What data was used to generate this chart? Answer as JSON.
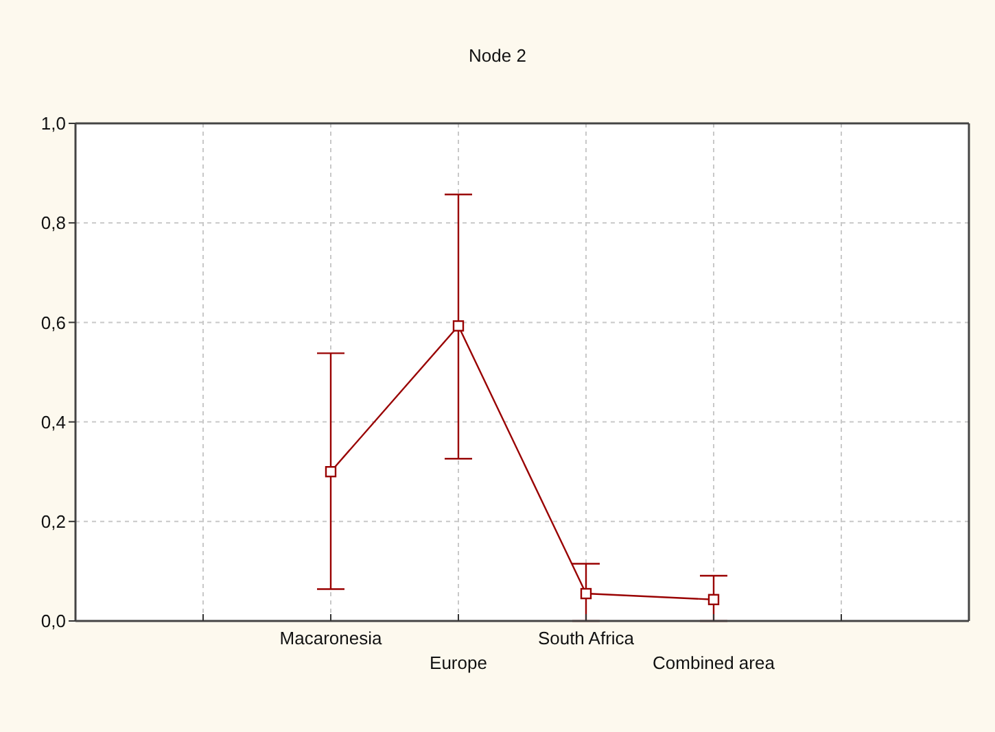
{
  "chart_data": {
    "type": "line",
    "title": "Node 2",
    "categories": [
      null,
      "Macaronesia",
      "Europe",
      "South Africa",
      "Combined area",
      null
    ],
    "series": [
      {
        "color": "#990000",
        "values": [
          null,
          0.3,
          0.593,
          0.055,
          0.043,
          null
        ],
        "errors": [
          null,
          [
            0.064,
            0.538
          ],
          [
            0.326,
            0.857
          ],
          [
            0.0,
            0.115
          ],
          [
            0.0,
            0.091
          ],
          null
        ]
      }
    ],
    "ylim": [
      0,
      1
    ],
    "yticks": [
      {
        "value": 0,
        "label": "0,0"
      },
      {
        "value": 0.2,
        "label": "0,2"
      },
      {
        "value": 0.4,
        "label": "0,4"
      },
      {
        "value": 0.6,
        "label": "0,6"
      },
      {
        "value": 0.8,
        "label": "0,8"
      },
      {
        "value": 1,
        "label": "1,0"
      }
    ],
    "grid": true,
    "marker": "square",
    "line_style": "solid"
  }
}
